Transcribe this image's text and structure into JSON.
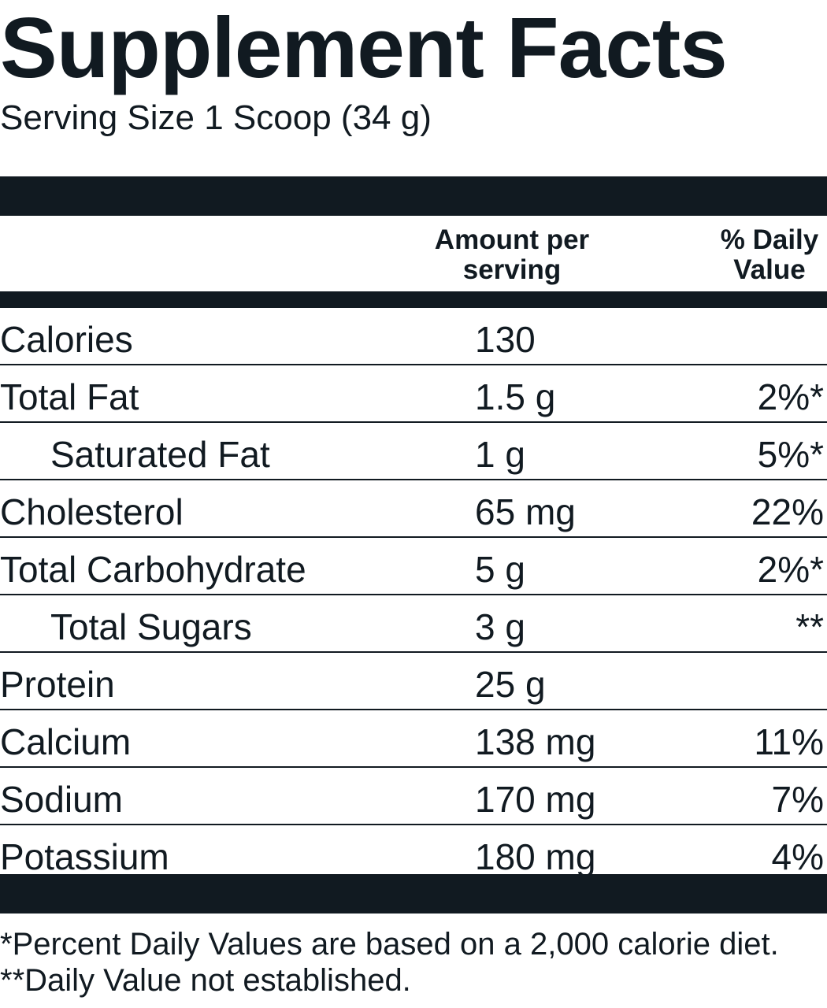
{
  "header": {
    "title": "Supplement Facts",
    "serving_size": "Serving Size 1 Scoop (34 g)"
  },
  "columns": {
    "amount_line1": "Amount per",
    "amount_line2": "serving",
    "dv_line1": "% Daily",
    "dv_line2": "Value"
  },
  "rows": [
    {
      "name": "Calories",
      "amount": "130",
      "dv": "",
      "indent": false
    },
    {
      "name": "Total Fat",
      "amount": "1.5 g",
      "dv": "2%*",
      "indent": false
    },
    {
      "name": "Saturated Fat",
      "amount": "1 g",
      "dv": "5%*",
      "indent": true
    },
    {
      "name": "Cholesterol",
      "amount": "65 mg",
      "dv": "22%",
      "indent": false
    },
    {
      "name": "Total Carbohydrate",
      "amount": "5 g",
      "dv": "2%*",
      "indent": false
    },
    {
      "name": "Total Sugars",
      "amount": "3 g",
      "dv": "**",
      "indent": true
    },
    {
      "name": "Protein",
      "amount": "25 g",
      "dv": "",
      "indent": false
    },
    {
      "name": "Calcium",
      "amount": "138 mg",
      "dv": "11%",
      "indent": false
    },
    {
      "name": "Sodium",
      "amount": "170 mg",
      "dv": "7%",
      "indent": false
    },
    {
      "name": "Potassium",
      "amount": "180 mg",
      "dv": "4%",
      "indent": false
    }
  ],
  "footnotes": {
    "line1": "*Percent Daily Values are based on a 2,000 calorie diet.",
    "line2": "**Daily Value not established."
  },
  "colors": {
    "ink": "#111a21",
    "background": "#ffffff"
  }
}
